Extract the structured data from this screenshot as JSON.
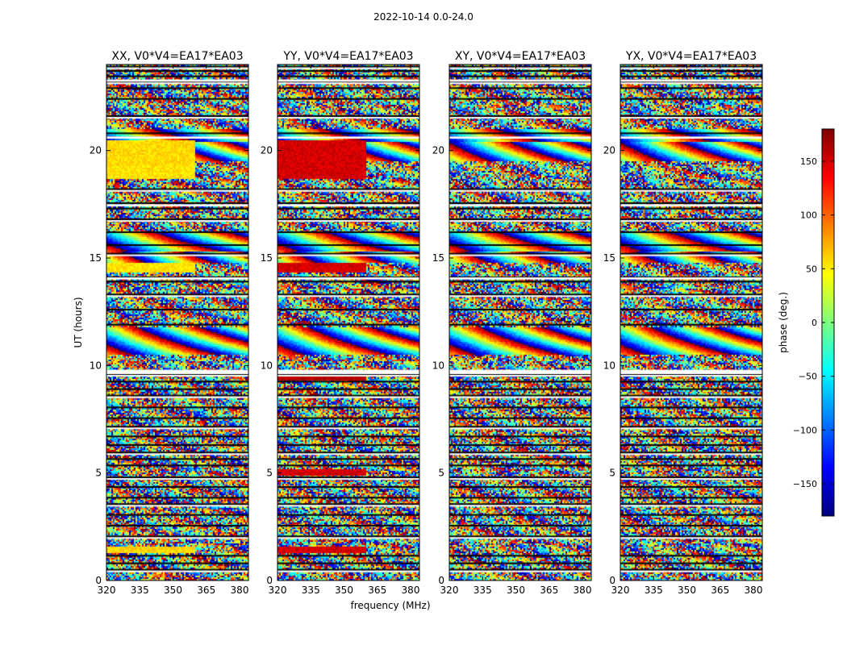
{
  "chart_data": {
    "type": "heatmap",
    "suptitle": "2022-10-14 0.0-24.0",
    "xlabel": "frequency (MHz)",
    "ylabel": "UT (hours)",
    "xlim": [
      320,
      384
    ],
    "ylim": [
      0,
      24
    ],
    "xticks": [
      320,
      335,
      350,
      365,
      380
    ],
    "yticks": [
      0,
      5,
      10,
      15,
      20
    ],
    "panels": [
      {
        "title": "XX, V0*V4=EA17*EA03",
        "pol": "XX",
        "coherent_bands": [
          [
            1.3,
            1.6,
            60
          ],
          [
            14.3,
            14.8,
            55
          ],
          [
            18.7,
            19.3,
            55
          ],
          [
            19.3,
            20.5,
            58
          ]
        ],
        "coherent_cutoff_mhz": 360
      },
      {
        "title": "YY, V0*V4=EA17*EA03",
        "pol": "YY",
        "coherent_bands": [
          [
            1.3,
            1.6,
            150
          ],
          [
            4.9,
            5.2,
            150
          ],
          [
            9.3,
            9.5,
            160
          ],
          [
            14.3,
            14.8,
            150
          ],
          [
            18.7,
            19.3,
            150
          ],
          [
            19.3,
            20.5,
            150
          ]
        ],
        "coherent_cutoff_mhz": 360
      },
      {
        "title": "XY, V0*V4=EA17*EA03",
        "pol": "XY",
        "coherent_bands": [],
        "coherent_cutoff_mhz": 360
      },
      {
        "title": "YX, V0*V4=EA17*EA03",
        "pol": "YX",
        "coherent_bands": [],
        "coherent_cutoff_mhz": 360
      }
    ],
    "flagged_rows_ut": [
      0.5,
      0.8,
      1.15,
      2.05,
      2.55,
      3.05,
      3.55,
      3.85,
      4.35,
      4.8,
      5.35,
      5.65,
      5.95,
      6.3,
      6.7,
      7.15,
      7.55,
      8.05,
      8.6,
      8.9,
      9.25,
      9.6,
      11.9,
      12.6,
      13.3,
      13.9,
      14.1,
      15.2,
      15.6,
      16.2,
      16.8,
      17.3,
      17.55,
      18.2,
      20.6,
      20.8,
      21.6,
      22.4,
      22.9,
      23.2,
      23.45,
      23.7,
      23.9
    ],
    "fringe_bands": [
      [
        10.5,
        11.8
      ],
      [
        14.8,
        16.2
      ],
      [
        19.5,
        21.0
      ]
    ],
    "colorbar": {
      "label": "phase (deg.)",
      "min": -180,
      "max": 180,
      "ticks": [
        150,
        100,
        50,
        0,
        -50,
        -100,
        -150
      ],
      "tick_labels": [
        "150",
        "100",
        "50",
        "0",
        "−50",
        "−100",
        "−150"
      ],
      "colormap": "jet"
    }
  }
}
